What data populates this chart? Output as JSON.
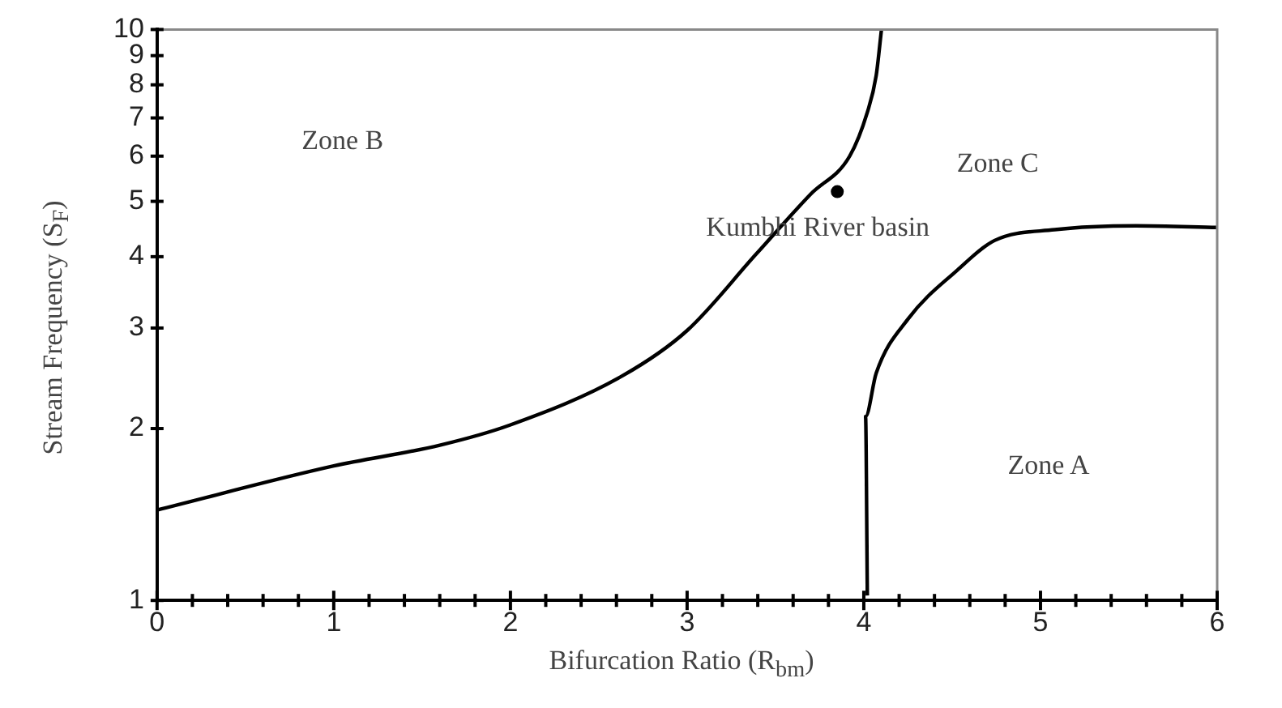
{
  "chart_data": {
    "type": "line",
    "xlabel": "Bifurcation Ratio (R$_{bm}$)",
    "ylabel": "Stream Frequency (S$_{F}$)",
    "log": "y",
    "xlim": [
      0,
      6
    ],
    "ylim": [
      1,
      10
    ],
    "xticks": [
      0,
      {
        "value": 0.2,
        "label": null
      },
      {
        "value": 0.4,
        "label": null
      },
      {
        "value": 0.6,
        "label": null
      },
      {
        "value": 0.8,
        "label": null
      },
      1,
      {
        "value": 1.2,
        "label": null
      },
      {
        "value": 1.4,
        "label": null
      },
      {
        "value": 1.6,
        "label": null
      },
      {
        "value": 1.8,
        "label": null
      },
      2,
      {
        "value": 2.2,
        "label": null
      },
      {
        "value": 2.4,
        "label": null
      },
      {
        "value": 2.6,
        "label": null
      },
      {
        "value": 2.8,
        "label": null
      },
      3,
      {
        "value": 3.2,
        "label": null
      },
      {
        "value": 3.4,
        "label": null
      },
      {
        "value": 3.6,
        "label": null
      },
      {
        "value": 3.8,
        "label": null
      },
      4,
      {
        "value": 4.2,
        "label": null
      },
      {
        "value": 4.4,
        "label": null
      },
      {
        "value": 4.6,
        "label": null
      },
      {
        "value": 4.8,
        "label": null
      },
      5,
      {
        "value": 5.2,
        "label": null
      },
      {
        "value": 5.4,
        "label": null
      },
      {
        "value": 5.6,
        "label": null
      },
      {
        "value": 5.8,
        "label": null
      },
      6
    ],
    "yticks": [
      1,
      2,
      3,
      4,
      5,
      6,
      7,
      8,
      9,
      10
    ],
    "grid": false,
    "legend": false,
    "marker": "none",
    "line_style": "solid",
    "series": [
      {
        "color": "#000000",
        "x": [
          0,
          1,
          1.6,
          2,
          2.63,
          3.0,
          3.39,
          3.7,
          3.92,
          4.02,
          4.07,
          4.1
        ],
        "values": [
          1.44,
          1.72,
          1.87,
          2.03,
          2.47,
          2.97,
          4.04,
          5.15,
          6.0,
          7.16,
          8.3,
          10
        ]
      },
      {
        "color": "#000000",
        "x": [
          4.02,
          4.01,
          4.07,
          4.25,
          4.53,
          4.74,
          5.08,
          5.54,
          6
        ],
        "values": [
          1.02,
          2.1,
          2.5,
          3.11,
          3.79,
          4.27,
          4.46,
          4.53,
          4.5
        ]
      },
      {
        "type": "scatter",
        "name": "Kumbhi River basin",
        "color": "#000000",
        "marker": "circle",
        "x": [
          3.85
        ],
        "values": [
          5.2
        ]
      }
    ],
    "annotations": [
      "Zone B",
      "Zone C",
      "Zone A"
    ]
  }
}
